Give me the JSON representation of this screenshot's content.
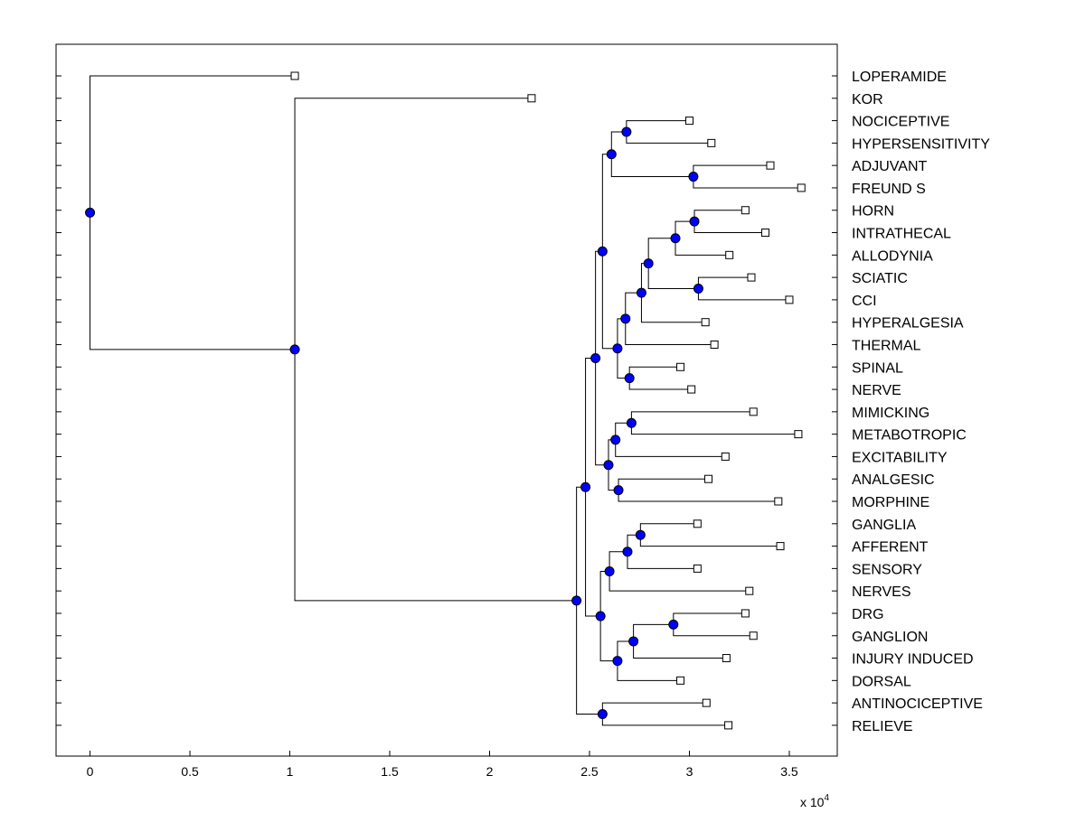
{
  "chart_data": {
    "type": "dendrogram",
    "title": "",
    "xlabel": "",
    "ylabel": "",
    "x_multiplier_label": "x 10",
    "x_multiplier_exp": "4",
    "x_range": [
      -0.17,
      3.74
    ],
    "x_ticks": [
      0,
      0.5,
      1,
      1.5,
      2,
      2.5,
      3,
      3.5
    ],
    "x_tick_labels": [
      "0",
      "0.5",
      "1",
      "1.5",
      "2",
      "2.5",
      "3",
      "3.5"
    ],
    "node_color": "#0000ff",
    "line_color": "#000000",
    "leaves": [
      {
        "id": "L0",
        "label": "LOPERAMIDE",
        "x": 1.025
      },
      {
        "id": "L1",
        "label": "KOR",
        "x": 2.21
      },
      {
        "id": "L2",
        "label": "NOCICEPTIVE",
        "x": 3.0
      },
      {
        "id": "L3",
        "label": "HYPERSENSITIVITY",
        "x": 3.11
      },
      {
        "id": "L4",
        "label": "ADJUVANT",
        "x": 3.405
      },
      {
        "id": "L5",
        "label": "FREUND S",
        "x": 3.56
      },
      {
        "id": "L6",
        "label": "HORN",
        "x": 3.28
      },
      {
        "id": "L7",
        "label": "INTRATHECAL",
        "x": 3.38
      },
      {
        "id": "L8",
        "label": "ALLODYNIA",
        "x": 3.2
      },
      {
        "id": "L9",
        "label": "SCIATIC",
        "x": 3.31
      },
      {
        "id": "L10",
        "label": "CCI",
        "x": 3.5
      },
      {
        "id": "L11",
        "label": "HYPERALGESIA",
        "x": 3.08
      },
      {
        "id": "L12",
        "label": "THERMAL",
        "x": 3.125
      },
      {
        "id": "L13",
        "label": "SPINAL",
        "x": 2.955
      },
      {
        "id": "L14",
        "label": "NERVE",
        "x": 3.01
      },
      {
        "id": "L15",
        "label": "MIMICKING",
        "x": 3.32
      },
      {
        "id": "L16",
        "label": "METABOTROPIC",
        "x": 3.545
      },
      {
        "id": "L17",
        "label": "EXCITABILITY",
        "x": 3.18
      },
      {
        "id": "L18",
        "label": "ANALGESIC",
        "x": 3.095
      },
      {
        "id": "L19",
        "label": "MORPHINE",
        "x": 3.445
      },
      {
        "id": "L20",
        "label": "GANGLIA",
        "x": 3.04
      },
      {
        "id": "L21",
        "label": "AFFERENT",
        "x": 3.455
      },
      {
        "id": "L22",
        "label": "SENSORY",
        "x": 3.04
      },
      {
        "id": "L23",
        "label": "NERVES",
        "x": 3.3
      },
      {
        "id": "L24",
        "label": "DRG",
        "x": 3.28
      },
      {
        "id": "L25",
        "label": "GANGLION",
        "x": 3.32
      },
      {
        "id": "L26",
        "label": "INJURY INDUCED",
        "x": 3.185
      },
      {
        "id": "L27",
        "label": "DORSAL",
        "x": 2.955
      },
      {
        "id": "L28",
        "label": "ANTINOCICEPTIVE",
        "x": 3.085
      },
      {
        "id": "L29",
        "label": "RELIEVE",
        "x": 3.195
      }
    ],
    "merges": [
      {
        "id": "N1",
        "x": 2.685,
        "children": [
          "L2",
          "L3"
        ]
      },
      {
        "id": "N2",
        "x": 3.02,
        "children": [
          "L4",
          "L5"
        ]
      },
      {
        "id": "N3",
        "x": 2.61,
        "children": [
          "N1",
          "N2"
        ]
      },
      {
        "id": "N4",
        "x": 3.025,
        "children": [
          "L6",
          "L7"
        ]
      },
      {
        "id": "N5",
        "x": 2.93,
        "children": [
          "N4",
          "L8"
        ]
      },
      {
        "id": "N6",
        "x": 3.045,
        "children": [
          "L9",
          "L10"
        ]
      },
      {
        "id": "N7",
        "x": 2.795,
        "children": [
          "N5",
          "N6"
        ]
      },
      {
        "id": "N8",
        "x": 2.76,
        "children": [
          "N7",
          "L11"
        ]
      },
      {
        "id": "N9",
        "x": 2.68,
        "children": [
          "N8",
          "L12"
        ]
      },
      {
        "id": "N10",
        "x": 2.7,
        "children": [
          "L13",
          "L14"
        ]
      },
      {
        "id": "N11",
        "x": 2.64,
        "children": [
          "N9",
          "N10"
        ]
      },
      {
        "id": "N12",
        "x": 2.565,
        "children": [
          "N3",
          "N11"
        ]
      },
      {
        "id": "N13",
        "x": 2.71,
        "children": [
          "L15",
          "L16"
        ]
      },
      {
        "id": "N14",
        "x": 2.63,
        "children": [
          "N13",
          "L17"
        ]
      },
      {
        "id": "N15",
        "x": 2.645,
        "children": [
          "L18",
          "L19"
        ]
      },
      {
        "id": "N16",
        "x": 2.595,
        "children": [
          "N14",
          "N15"
        ]
      },
      {
        "id": "N17",
        "x": 2.53,
        "children": [
          "N12",
          "N16"
        ]
      },
      {
        "id": "N18",
        "x": 2.755,
        "children": [
          "L20",
          "L21"
        ]
      },
      {
        "id": "N19",
        "x": 2.69,
        "children": [
          "N18",
          "L22"
        ]
      },
      {
        "id": "N20",
        "x": 2.6,
        "children": [
          "N19",
          "L23"
        ]
      },
      {
        "id": "N21",
        "x": 2.92,
        "children": [
          "L24",
          "L25"
        ]
      },
      {
        "id": "N22",
        "x": 2.72,
        "children": [
          "N21",
          "L26"
        ]
      },
      {
        "id": "N23",
        "x": 2.64,
        "children": [
          "N22",
          "L27"
        ]
      },
      {
        "id": "N24",
        "x": 2.555,
        "children": [
          "N20",
          "N23"
        ]
      },
      {
        "id": "N25",
        "x": 2.48,
        "children": [
          "N17",
          "N24"
        ]
      },
      {
        "id": "N26",
        "x": 2.565,
        "children": [
          "L28",
          "L29"
        ]
      },
      {
        "id": "N27",
        "x": 2.435,
        "children": [
          "N25",
          "N26"
        ]
      },
      {
        "id": "N28",
        "x": 1.025,
        "children": [
          "L1",
          "N27"
        ]
      },
      {
        "id": "N29",
        "x": 0.0,
        "children": [
          "L0",
          "N28"
        ]
      }
    ]
  }
}
